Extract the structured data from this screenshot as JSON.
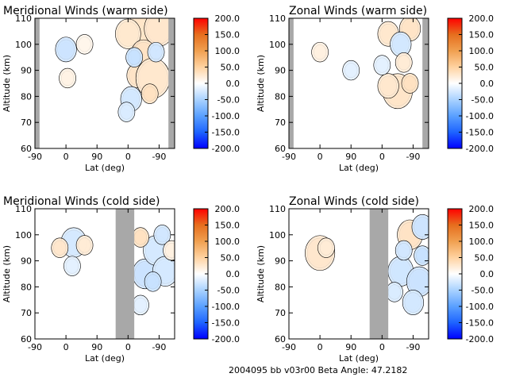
{
  "footer": {
    "text": "2004095 bb v03r00   Beta Angle: 47.2182"
  },
  "colors": {
    "gap": "#a8a8a8",
    "line": "#000000",
    "cmap": [
      "#0000ff",
      "#1e64ff",
      "#5aa0ff",
      "#aad2ff",
      "#ffffff",
      "#ffd2a0",
      "#f0a050",
      "#e66e1e",
      "#ff0000"
    ]
  },
  "chart_data": [
    {
      "type": "heatmap",
      "title": "Meridional Winds (warm side)",
      "xlabel": "Lat (deg)",
      "ylabel": "Altitude (km)",
      "xticks": [
        "-90",
        "0",
        "90",
        "0",
        "-90"
      ],
      "yticks": [
        "60",
        "70",
        "80",
        "90",
        "100",
        "110"
      ],
      "ylim": [
        60,
        110
      ],
      "colorbar": {
        "ticks": [
          "200.0",
          "150.0",
          "100.0",
          "50.0",
          "0.0",
          "-50.0",
          "-100.0",
          "-150.0",
          "-200.0"
        ],
        "range": [
          -200,
          200
        ]
      },
      "gaps": [
        {
          "from": -1.0,
          "to": -0.85
        },
        {
          "from": 3.3,
          "to": 3.5
        }
      ],
      "blobs": [
        {
          "x": 0.0,
          "y": 98,
          "val": -80
        },
        {
          "x": 0.6,
          "y": 100,
          "val": 20
        },
        {
          "x": 0.05,
          "y": 87,
          "val": 25
        },
        {
          "x": 2.6,
          "y": 105,
          "val": 180
        },
        {
          "x": 3.0,
          "y": 106,
          "val": 120
        },
        {
          "x": 2.0,
          "y": 104,
          "val": 90
        },
        {
          "x": 2.5,
          "y": 96,
          "val": 110
        },
        {
          "x": 2.3,
          "y": 88,
          "val": 80
        },
        {
          "x": 2.8,
          "y": 87,
          "val": 140
        },
        {
          "x": 2.1,
          "y": 79,
          "val": -70
        },
        {
          "x": 2.7,
          "y": 81,
          "val": 60
        },
        {
          "x": 2.2,
          "y": 95,
          "val": -60
        },
        {
          "x": 2.9,
          "y": 97,
          "val": -50
        },
        {
          "x": 1.95,
          "y": 74,
          "val": -40
        }
      ]
    },
    {
      "type": "heatmap",
      "title": "Zonal Winds (warm side)",
      "xlabel": "Lat (deg)",
      "ylabel": "Altitude (km)",
      "xticks": [
        "-90",
        "0",
        "90",
        "0",
        "-90"
      ],
      "yticks": [
        "60",
        "70",
        "80",
        "90",
        "100",
        "110"
      ],
      "ylim": [
        60,
        110
      ],
      "colorbar": {
        "ticks": [
          "200.0",
          "150.0",
          "100.0",
          "50.0",
          "0.0",
          "-50.0",
          "-100.0",
          "-150.0",
          "-200.0"
        ],
        "range": [
          -200,
          200
        ]
      },
      "gaps": [
        {
          "from": -1.0,
          "to": -0.85
        },
        {
          "from": 3.3,
          "to": 3.5
        }
      ],
      "blobs": [
        {
          "x": 0.0,
          "y": 97,
          "val": 30
        },
        {
          "x": 1.0,
          "y": 90,
          "val": -30
        },
        {
          "x": 2.5,
          "y": 82,
          "val": 130
        },
        {
          "x": 2.2,
          "y": 84,
          "val": 70
        },
        {
          "x": 2.9,
          "y": 85,
          "val": 60
        },
        {
          "x": 2.2,
          "y": 104,
          "val": 70
        },
        {
          "x": 2.9,
          "y": 106,
          "val": 80
        },
        {
          "x": 2.6,
          "y": 100,
          "val": -70
        },
        {
          "x": 2.7,
          "y": 93,
          "val": 40
        },
        {
          "x": 2.0,
          "y": 92,
          "val": -30
        }
      ]
    },
    {
      "type": "heatmap",
      "title": "Meridional Winds (cold side)",
      "xlabel": "Lat (deg)",
      "ylabel": "Altitude (km)",
      "xticks": [
        "-90",
        "0",
        "90",
        "0",
        "-90"
      ],
      "yticks": [
        "60",
        "70",
        "80",
        "90",
        "100",
        "110"
      ],
      "ylim": [
        60,
        110
      ],
      "colorbar": {
        "ticks": [
          "200.0",
          "150.0",
          "100.0",
          "50.0",
          "0.0",
          "-50.0",
          "-100.0",
          "-150.0",
          "-200.0"
        ],
        "range": [
          -200,
          200
        ]
      },
      "gaps": [
        {
          "from": 1.6,
          "to": 2.2
        }
      ],
      "blobs": [
        {
          "x": 0.25,
          "y": 97,
          "val": -90
        },
        {
          "x": -0.2,
          "y": 95,
          "val": 50
        },
        {
          "x": 0.6,
          "y": 96,
          "val": 40
        },
        {
          "x": 0.2,
          "y": 88,
          "val": -30
        },
        {
          "x": 2.55,
          "y": 85,
          "val": -110
        },
        {
          "x": 2.9,
          "y": 94,
          "val": -90
        },
        {
          "x": 2.4,
          "y": 99,
          "val": 60
        },
        {
          "x": 3.2,
          "y": 86,
          "val": -90
        },
        {
          "x": 2.8,
          "y": 82,
          "val": -60
        },
        {
          "x": 3.1,
          "y": 100,
          "val": -50
        },
        {
          "x": 2.4,
          "y": 73,
          "val": -30
        },
        {
          "x": 3.4,
          "y": 94,
          "val": 30
        }
      ]
    },
    {
      "type": "heatmap",
      "title": "Zonal Winds (cold side)",
      "xlabel": "Lat (deg)",
      "ylabel": "Altitude (km)",
      "xticks": [
        "-90",
        "0",
        "90",
        "0",
        "-90"
      ],
      "yticks": [
        "60",
        "70",
        "80",
        "90",
        "100",
        "110"
      ],
      "ylim": [
        60,
        110
      ],
      "colorbar": {
        "ticks": [
          "200.0",
          "150.0",
          "100.0",
          "50.0",
          "0.0",
          "-50.0",
          "-100.0",
          "-150.0",
          "-200.0"
        ],
        "range": [
          -200,
          200
        ]
      },
      "gaps": [
        {
          "from": 1.6,
          "to": 2.2
        }
      ],
      "blobs": [
        {
          "x": 0.0,
          "y": 93,
          "val": 120
        },
        {
          "x": 0.2,
          "y": 95,
          "val": 40
        },
        {
          "x": 2.9,
          "y": 100,
          "val": 110
        },
        {
          "x": 2.6,
          "y": 86,
          "val": -100
        },
        {
          "x": 3.2,
          "y": 82,
          "val": -110
        },
        {
          "x": 3.3,
          "y": 103,
          "val": -80
        },
        {
          "x": 2.7,
          "y": 94,
          "val": -50
        },
        {
          "x": 3.0,
          "y": 74,
          "val": -70
        },
        {
          "x": 2.4,
          "y": 78,
          "val": -40
        },
        {
          "x": 3.3,
          "y": 92,
          "val": -60
        }
      ]
    }
  ]
}
